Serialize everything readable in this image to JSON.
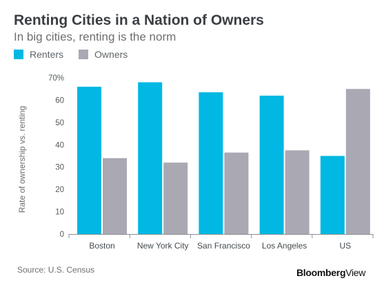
{
  "header": {
    "title": "Renting Cities in a Nation of Owners",
    "subtitle": "In big cities, renting is the norm"
  },
  "footer": {
    "source": "Source: U.S. Census",
    "brand_bold": "Bloomberg",
    "brand_light": "View"
  },
  "colors": {
    "renters": "#00b8e3",
    "owners": "#a9a8b3"
  },
  "chart_data": {
    "type": "bar",
    "title": "Renting Cities in a Nation of Owners",
    "subtitle": "In big cities, renting is the norm",
    "xlabel": "",
    "ylabel": "Rate of ownership vs. renting",
    "ylim": [
      0,
      70
    ],
    "yticks": [
      "0",
      "10",
      "20",
      "30",
      "40",
      "50",
      "60",
      "70%"
    ],
    "categories": [
      "Boston",
      "New York City",
      "San Francisco",
      "Los Angeles",
      "US"
    ],
    "series": [
      {
        "name": "Renters",
        "values": [
          66,
          68,
          63.5,
          62,
          35
        ]
      },
      {
        "name": "Owners",
        "values": [
          34,
          32,
          36.5,
          37.5,
          65
        ]
      }
    ],
    "legend": "top-left",
    "grid": false
  }
}
